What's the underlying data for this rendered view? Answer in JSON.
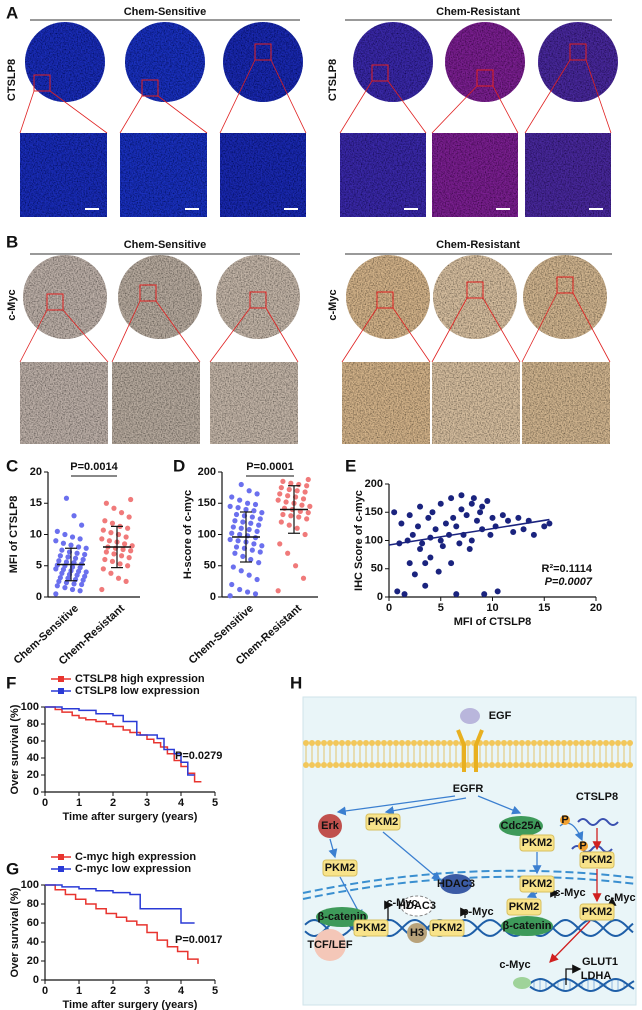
{
  "panel_a": {
    "label": "A",
    "groups": [
      "Chem-Sensitive",
      "Chem-Resistant"
    ],
    "row_labels": [
      "CTSLP8",
      "CTSLP8"
    ]
  },
  "panel_b": {
    "label": "B",
    "groups": [
      "Chem-Sensitive",
      "Chem-Resistant"
    ],
    "row_labels": [
      "c-Myc",
      "c-Myc"
    ]
  },
  "chart_data": [
    {
      "type": "dot",
      "label": "C",
      "ylabel": "MFI of CTSLP8",
      "categories": [
        "Chem-Sensitive",
        "Chem-Resistant"
      ],
      "ylim": [
        0,
        20
      ],
      "yticks": [
        0,
        5,
        10,
        15,
        20
      ],
      "annotation": "P=0.0014",
      "groups": [
        {
          "color": "#6b70ee",
          "mean": 5.2,
          "sd": 2.6,
          "values": [
            0.5,
            1,
            1.2,
            1.5,
            1.8,
            2,
            2.1,
            2.3,
            2.5,
            2.7,
            2.8,
            3,
            3.1,
            3.3,
            3.5,
            3.6,
            3.8,
            4,
            4.1,
            4.2,
            4.4,
            4.5,
            4.7,
            4.8,
            5,
            5.1,
            5.3,
            5.5,
            5.6,
            5.8,
            6,
            6.2,
            6.4,
            6.6,
            6.8,
            7,
            7.2,
            7.5,
            7.8,
            8,
            8.3,
            8.6,
            9,
            9.3,
            9.6,
            10,
            10.5,
            11.5,
            13,
            15.8
          ]
        },
        {
          "color": "#f07a7a",
          "mean": 8.0,
          "sd": 3.3,
          "values": [
            1.2,
            2.5,
            3,
            3.8,
            4.5,
            5,
            5.3,
            5.7,
            6,
            6.3,
            6.6,
            6.9,
            7.2,
            7.4,
            7.6,
            7.8,
            8,
            8.2,
            8.5,
            8.8,
            9,
            9.3,
            9.6,
            10,
            10.3,
            10.7,
            11,
            11.3,
            11.8,
            12.2,
            12.8,
            13.5,
            14.2,
            15,
            15.6
          ]
        }
      ]
    },
    {
      "type": "dot",
      "label": "D",
      "ylabel": "H-score of c-myc",
      "categories": [
        "Chem-Sensitive",
        "Chem-Resistant"
      ],
      "ylim": [
        0,
        200
      ],
      "yticks": [
        0,
        50,
        100,
        150,
        200
      ],
      "annotation": "P=0.0001",
      "groups": [
        {
          "color": "#6b70ee",
          "mean": 96,
          "sd": 40,
          "values": [
            2,
            5,
            8,
            12,
            20,
            28,
            35,
            42,
            48,
            55,
            60,
            65,
            70,
            72,
            75,
            78,
            80,
            82,
            85,
            88,
            90,
            92,
            95,
            98,
            100,
            102,
            105,
            108,
            110,
            112,
            115,
            118,
            120,
            122,
            125,
            128,
            130,
            132,
            135,
            138,
            140,
            143,
            145,
            148,
            150,
            155,
            160,
            165,
            170,
            180
          ]
        },
        {
          "color": "#f07a7a",
          "mean": 140,
          "sd": 38,
          "values": [
            10,
            30,
            50,
            70,
            85,
            100,
            110,
            115,
            120,
            125,
            128,
            130,
            132,
            135,
            137,
            140,
            142,
            145,
            147,
            150,
            152,
            155,
            157,
            160,
            162,
            165,
            168,
            170,
            172,
            175,
            178,
            180,
            182,
            185,
            188
          ]
        }
      ]
    },
    {
      "type": "scatter",
      "label": "E",
      "xlabel": "MFI of CTSLP8",
      "ylabel": "IHC Score of c-myc",
      "color": "#1a237e",
      "xlim": [
        0,
        20
      ],
      "xticks": [
        0,
        5,
        10,
        15,
        20
      ],
      "ylim": [
        0,
        200
      ],
      "yticks": [
        0,
        50,
        100,
        150,
        200
      ],
      "x": [
        0.5,
        0.8,
        1,
        1.2,
        1.5,
        1.8,
        2,
        2,
        2.3,
        2.5,
        2.8,
        3,
        3,
        3.2,
        3.5,
        3.8,
        4,
        4,
        4.2,
        4.5,
        4.8,
        5,
        5,
        5.2,
        5.5,
        5.8,
        6,
        6,
        6.2,
        6.5,
        6.8,
        7,
        7,
        7.2,
        7.5,
        7.8,
        8,
        8,
        8.2,
        8.5,
        8.8,
        9,
        9.2,
        9.5,
        9.8,
        10,
        10.3,
        10.5,
        11,
        11.5,
        12,
        12.5,
        13,
        13.5,
        14,
        15,
        15.5,
        3.5,
        6.5,
        9
      ],
      "values": [
        150,
        10,
        95,
        130,
        5,
        100,
        145,
        60,
        110,
        40,
        125,
        85,
        160,
        95,
        20,
        140,
        105,
        70,
        150,
        120,
        45,
        100,
        165,
        90,
        130,
        110,
        175,
        60,
        140,
        125,
        95,
        155,
        180,
        110,
        145,
        85,
        165,
        100,
        175,
        135,
        150,
        120,
        5,
        170,
        110,
        140,
        125,
        10,
        145,
        135,
        115,
        140,
        120,
        135,
        110,
        125,
        130,
        60,
        5,
        160
      ],
      "trendline": {
        "x": [
          0,
          15.5
        ],
        "y": [
          92,
          137
        ]
      },
      "annotations": [
        "R²=0.1114",
        "P=0.0007"
      ]
    },
    {
      "type": "step",
      "label": "F",
      "xlabel": "Time after surgery (years)",
      "ylabel": "Over survival (%)",
      "xlim": [
        0,
        5
      ],
      "xticks": [
        0,
        1,
        2,
        3,
        4,
        5
      ],
      "ylim": [
        0,
        100
      ],
      "yticks": [
        0,
        20,
        40,
        60,
        80,
        100
      ],
      "legend": "upper left",
      "annotation": "P=0.0279",
      "series": [
        {
          "name": "CTSLP8 high expression",
          "color": "#e8342f",
          "x": [
            0,
            0.3,
            0.5,
            0.8,
            1.0,
            1.2,
            1.5,
            1.8,
            2.0,
            2.3,
            2.5,
            2.8,
            3.0,
            3.2,
            3.4,
            3.6,
            3.8,
            4.0,
            4.2,
            4.4,
            4.6
          ],
          "values": [
            100,
            97,
            94,
            90,
            87,
            85,
            83,
            80,
            77,
            73,
            70,
            67,
            62,
            58,
            53,
            45,
            37,
            30,
            22,
            12,
            12
          ]
        },
        {
          "name": "CTSLP8 low expression",
          "color": "#2a3ad6",
          "x": [
            0,
            0.5,
            1.0,
            1.5,
            2.0,
            2.3,
            2.7,
            3.0,
            3.3,
            3.5,
            3.8,
            4.0,
            4.2,
            4.4
          ],
          "values": [
            100,
            98,
            96,
            92,
            90,
            83,
            67,
            67,
            63,
            50,
            45,
            35,
            20,
            20
          ]
        }
      ]
    },
    {
      "type": "step",
      "label": "G",
      "xlabel": "Time after surgery (years)",
      "ylabel": "Over survival (%)",
      "xlim": [
        0,
        5
      ],
      "xticks": [
        0,
        1,
        2,
        3,
        4,
        5
      ],
      "ylim": [
        0,
        100
      ],
      "yticks": [
        0,
        20,
        40,
        60,
        80,
        100
      ],
      "legend": "upper left",
      "annotation": "P=0.0017",
      "series": [
        {
          "name": "C-myc high expression",
          "color": "#e8342f",
          "x": [
            0,
            0.3,
            0.6,
            0.9,
            1.2,
            1.5,
            1.8,
            2.1,
            2.4,
            2.7,
            3.0,
            3.3,
            3.6,
            3.9,
            4.2,
            4.5
          ],
          "values": [
            100,
            95,
            90,
            85,
            80,
            75,
            70,
            66,
            62,
            58,
            50,
            42,
            35,
            30,
            22,
            17
          ]
        },
        {
          "name": "C-myc low expression",
          "color": "#2a3ad6",
          "x": [
            0,
            0.5,
            1.0,
            1.5,
            2.0,
            2.5,
            2.8,
            3.0,
            3.5,
            3.8,
            4.0,
            4.4
          ],
          "values": [
            100,
            98,
            96,
            94,
            92,
            90,
            75,
            75,
            75,
            75,
            60,
            60
          ]
        }
      ]
    }
  ],
  "panel_h": {
    "label": "H",
    "texts": [
      "EGF",
      "EGFR",
      "Erk",
      "PKM2",
      "PKM2",
      "Cdc25A",
      "P",
      "P",
      "PKM2",
      "PKM2",
      "CTSLP8",
      "PKM2",
      "HDAC3",
      "HDAC3",
      "β-catenin",
      "TCF/LEF",
      "PKM2",
      "c-Myc",
      "H3",
      "PKM2",
      "c-Myc",
      "PKM2",
      "β-catenin",
      "c-Myc",
      "PKM2",
      "c-Myc",
      "c-Myc",
      "GLUT1",
      "LDHA"
    ]
  }
}
